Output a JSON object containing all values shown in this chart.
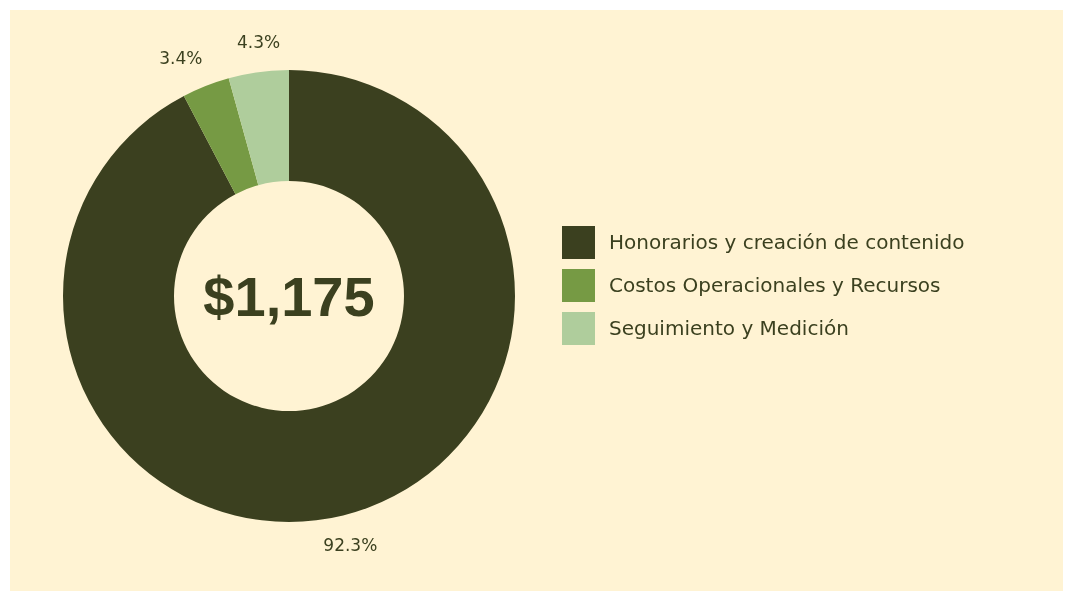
{
  "chart_data": {
    "type": "donut",
    "categories": [
      "Honorarios y creación de contenido",
      "Costos Operacionales y Recursos",
      "Seguimiento y Medición"
    ],
    "values": [
      92.3,
      3.4,
      4.3
    ],
    "value_labels": [
      "92.3%",
      "3.4%",
      "4.3%"
    ],
    "colors": [
      "#3b401f",
      "#769a44",
      "#afcd9c"
    ],
    "annotations": [
      "$1,175"
    ],
    "legend": "right"
  }
}
